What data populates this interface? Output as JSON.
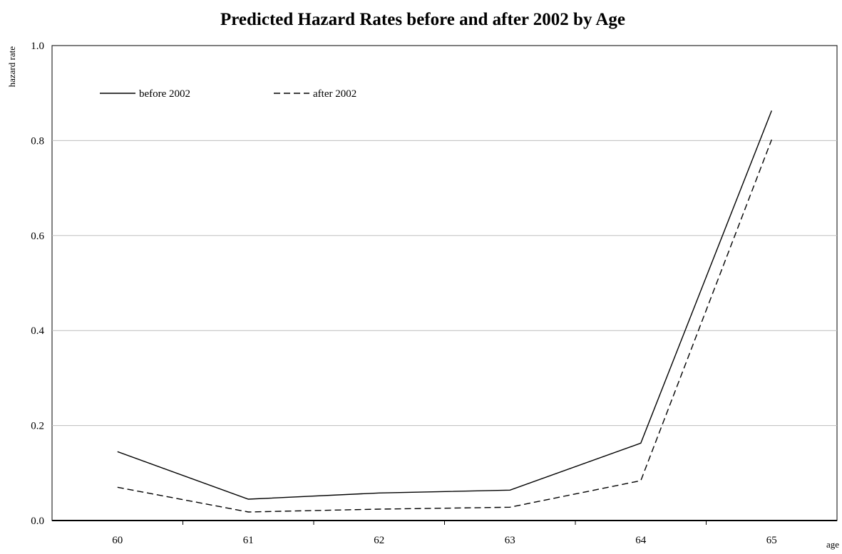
{
  "chart_data": {
    "type": "line",
    "title": "Predicted Hazard Rates before and after 2002 by Age",
    "xlabel": "age",
    "ylabel": "hazard rate",
    "categories": [
      "60",
      "61",
      "62",
      "63",
      "64",
      "65"
    ],
    "ylim": [
      0,
      1.0
    ],
    "yticks": [
      "0.0",
      "0.2",
      "0.4",
      "0.6",
      "0.8",
      "1.0"
    ],
    "grid": "horizontal",
    "legend_position": "top-left",
    "series": [
      {
        "name": "before 2002",
        "style": "solid",
        "color": "#000000",
        "values": [
          0.145,
          0.045,
          0.058,
          0.064,
          0.163,
          0.863
        ]
      },
      {
        "name": "after 2002",
        "style": "dashed",
        "color": "#000000",
        "values": [
          0.07,
          0.018,
          0.024,
          0.028,
          0.084,
          0.802
        ]
      }
    ]
  }
}
